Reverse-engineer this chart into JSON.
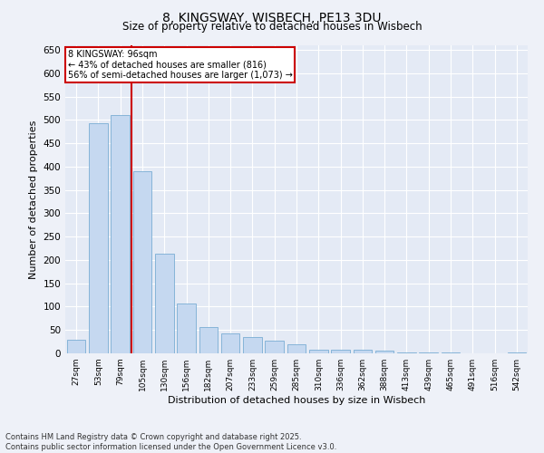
{
  "title1": "8, KINGSWAY, WISBECH, PE13 3DU",
  "title2": "Size of property relative to detached houses in Wisbech",
  "xlabel": "Distribution of detached houses by size in Wisbech",
  "ylabel": "Number of detached properties",
  "categories": [
    "27sqm",
    "53sqm",
    "79sqm",
    "105sqm",
    "130sqm",
    "156sqm",
    "182sqm",
    "207sqm",
    "233sqm",
    "259sqm",
    "285sqm",
    "310sqm",
    "336sqm",
    "362sqm",
    "388sqm",
    "413sqm",
    "439sqm",
    "465sqm",
    "491sqm",
    "516sqm",
    "542sqm"
  ],
  "values": [
    30,
    493,
    510,
    390,
    213,
    107,
    57,
    42,
    35,
    28,
    20,
    7,
    7,
    7,
    6,
    1,
    1,
    1,
    0,
    0,
    1
  ],
  "bar_color": "#c5d8f0",
  "bar_edge_color": "#7aadd4",
  "vline_color": "#cc0000",
  "annotation_title": "8 KINGSWAY: 96sqm",
  "annotation_line1": "← 43% of detached houses are smaller (816)",
  "annotation_line2": "56% of semi-detached houses are larger (1,073) →",
  "annotation_box_color": "#cc0000",
  "ylim": [
    0,
    660
  ],
  "yticks": [
    0,
    50,
    100,
    150,
    200,
    250,
    300,
    350,
    400,
    450,
    500,
    550,
    600,
    650
  ],
  "footnote1": "Contains HM Land Registry data © Crown copyright and database right 2025.",
  "footnote2": "Contains public sector information licensed under the Open Government Licence v3.0.",
  "bg_color": "#eef1f8",
  "plot_bg_color": "#e4eaf5"
}
